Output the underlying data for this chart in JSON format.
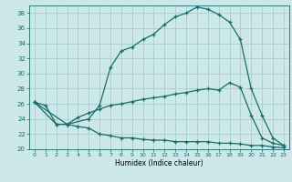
{
  "xlabel": "Humidex (Indice chaleur)",
  "xlim": [
    -0.5,
    23.5
  ],
  "ylim": [
    20,
    39
  ],
  "yticks": [
    20,
    22,
    24,
    26,
    28,
    30,
    32,
    34,
    36,
    38
  ],
  "xticks": [
    0,
    1,
    2,
    3,
    4,
    5,
    6,
    7,
    8,
    9,
    10,
    11,
    12,
    13,
    14,
    15,
    16,
    17,
    18,
    19,
    20,
    21,
    22,
    23
  ],
  "bg_color": "#cce8e8",
  "grid_color": "#aacccc",
  "line_color": "#1a6b6b",
  "curves": [
    {
      "x": [
        0,
        1,
        2,
        3,
        4,
        5,
        6,
        7,
        8,
        9,
        10,
        11,
        12,
        13,
        14,
        15,
        16,
        17,
        18,
        19,
        20,
        21,
        22,
        23
      ],
      "y": [
        26.2,
        25.8,
        23.3,
        23.3,
        23.0,
        22.8,
        22.0,
        21.8,
        21.5,
        21.5,
        21.3,
        21.2,
        21.2,
        21.0,
        21.0,
        21.0,
        21.0,
        20.8,
        20.8,
        20.7,
        20.5,
        20.5,
        20.3,
        20.2
      ]
    },
    {
      "x": [
        0,
        2,
        3,
        4,
        5,
        6,
        7,
        8,
        9,
        10,
        11,
        12,
        13,
        14,
        15,
        16,
        17,
        18,
        19,
        20,
        21,
        22,
        23
      ],
      "y": [
        26.2,
        23.3,
        23.3,
        24.2,
        24.8,
        25.3,
        25.8,
        26.0,
        26.3,
        26.6,
        26.8,
        27.0,
        27.3,
        27.5,
        27.8,
        28.0,
        27.8,
        28.8,
        28.2,
        24.5,
        21.5,
        20.8,
        20.5
      ]
    },
    {
      "x": [
        0,
        3,
        5,
        6,
        7,
        8,
        9,
        10,
        11,
        12,
        13,
        14,
        15,
        16,
        17,
        18,
        19,
        20,
        21,
        22,
        23
      ],
      "y": [
        26.2,
        23.3,
        24.0,
        25.8,
        30.8,
        33.0,
        33.5,
        34.5,
        35.2,
        36.5,
        37.5,
        38.0,
        38.8,
        38.5,
        37.8,
        36.8,
        34.5,
        28.0,
        24.5,
        21.5,
        20.5
      ]
    }
  ]
}
